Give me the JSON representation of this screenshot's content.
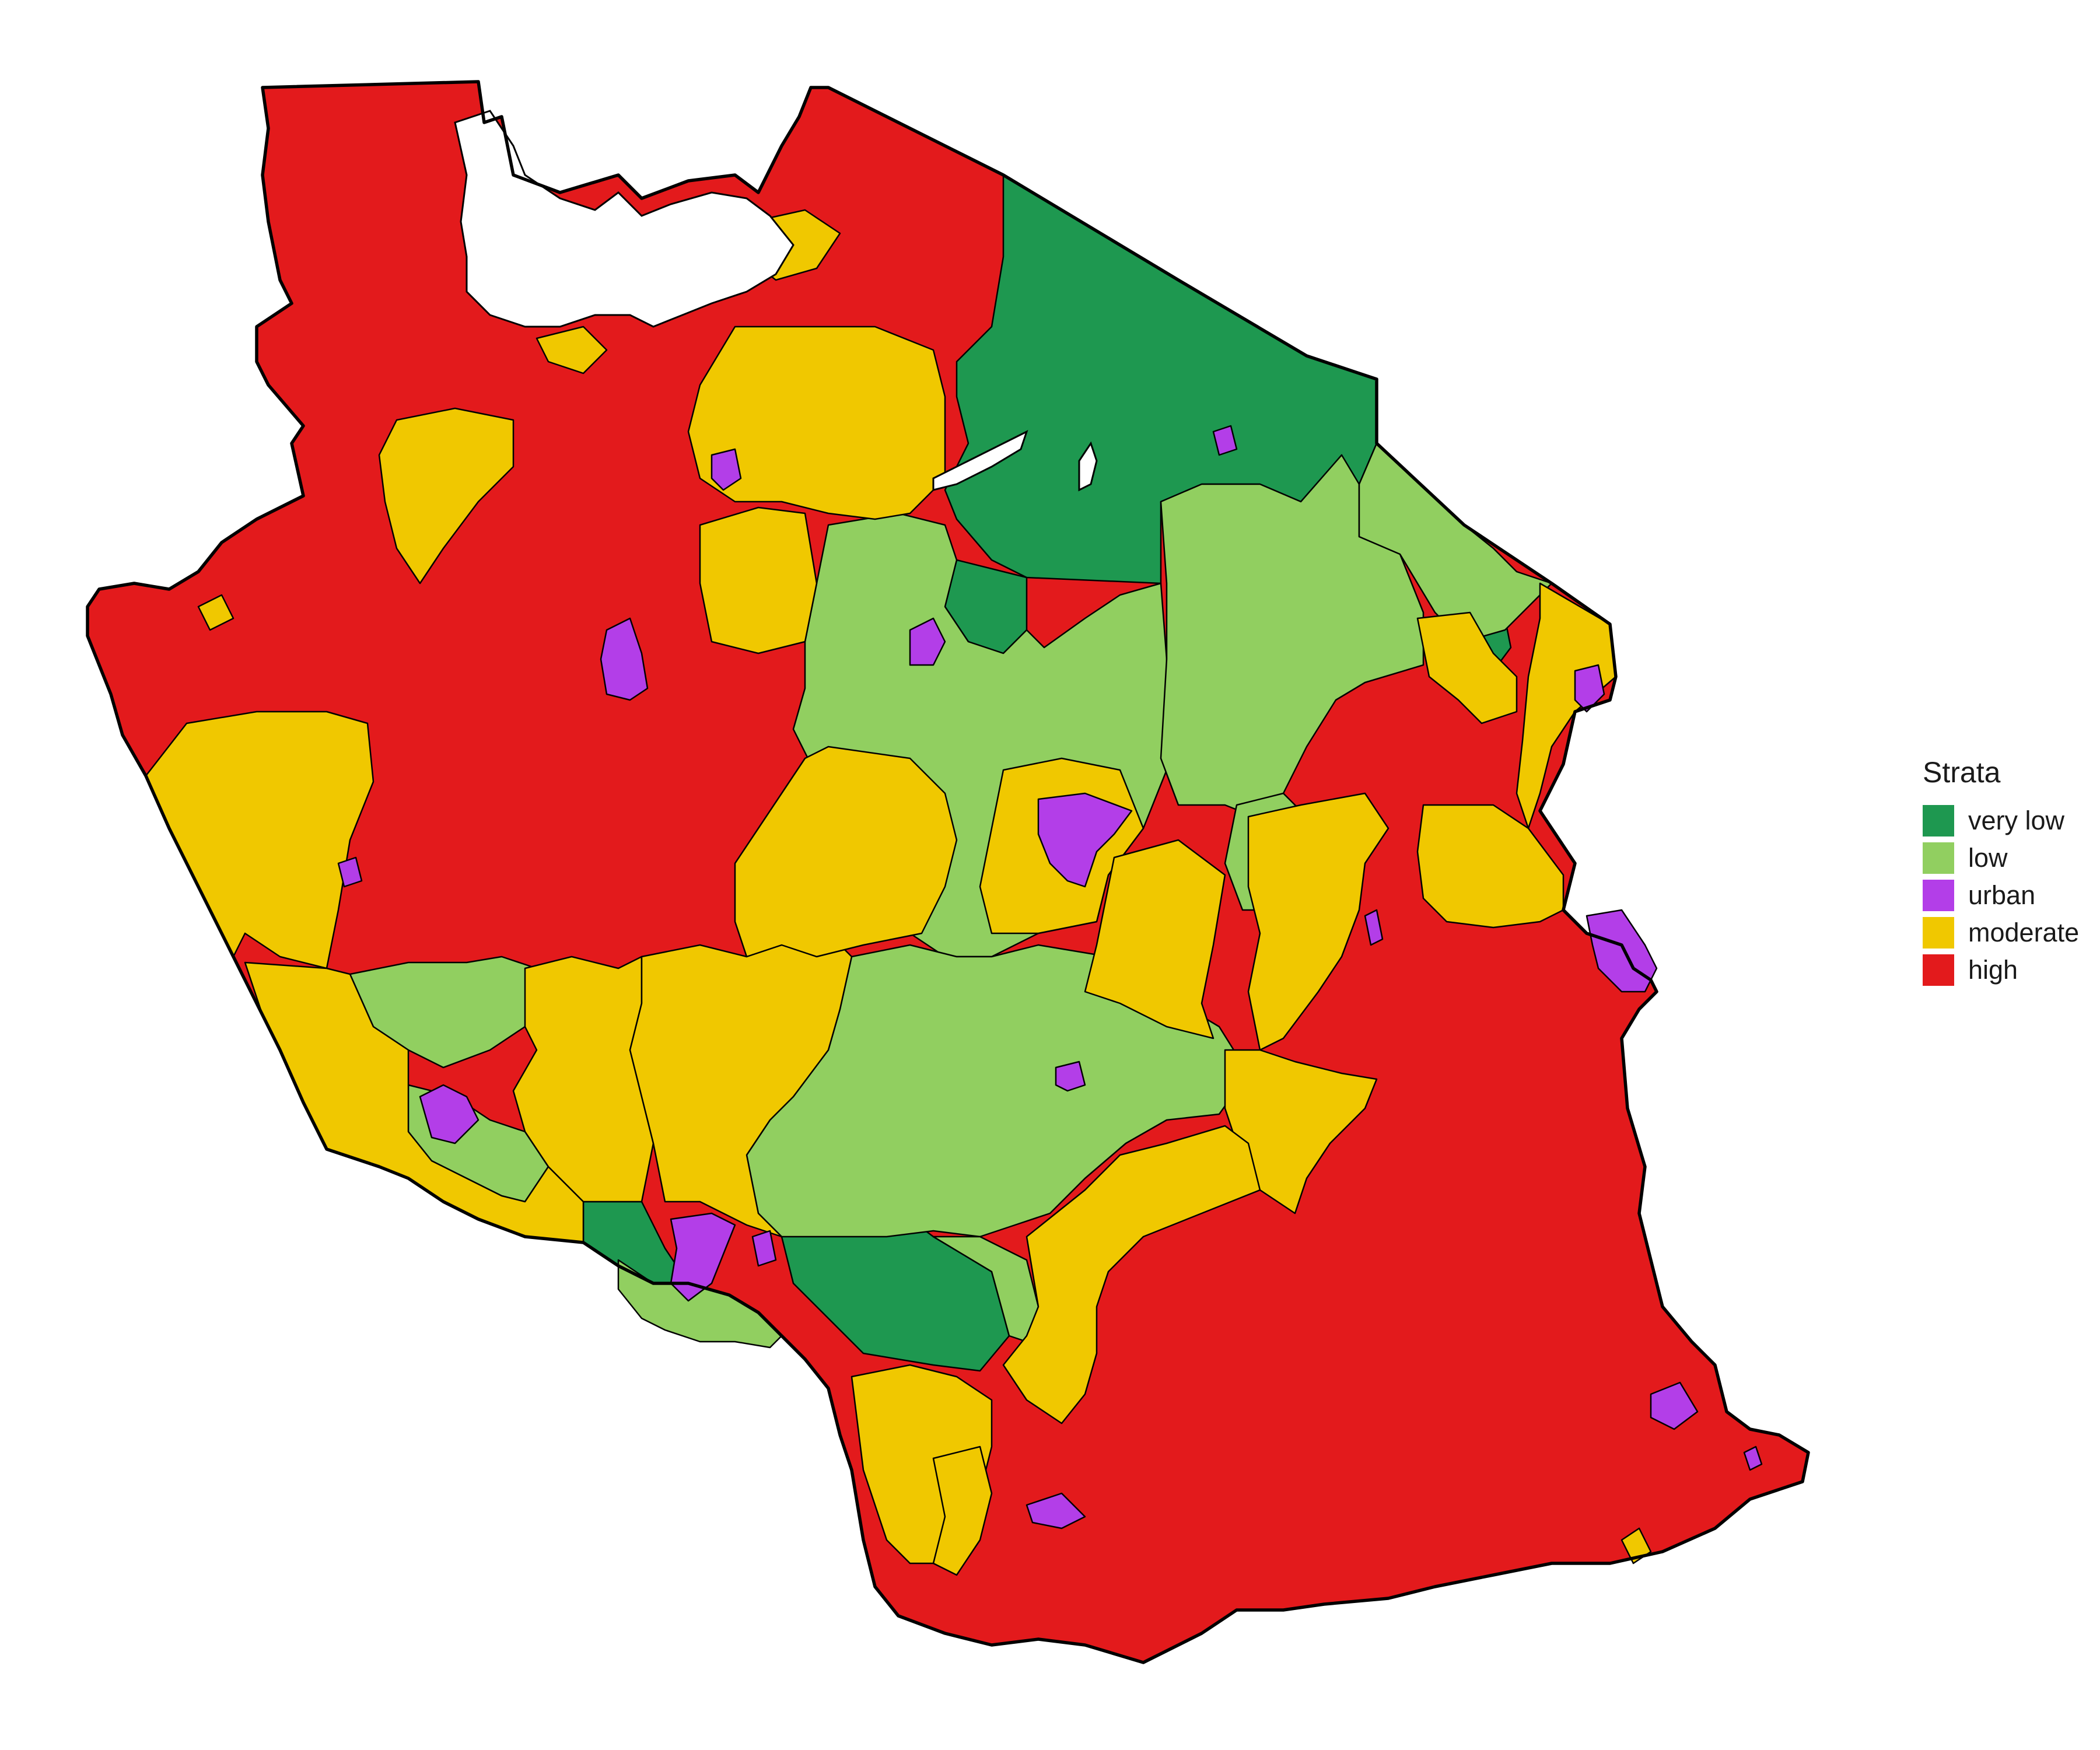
{
  "map": {
    "legend": {
      "title": "Strata",
      "items": [
        {
          "key": "very_low",
          "label": "very low",
          "color": "#1e9850"
        },
        {
          "key": "low",
          "label": "low",
          "color": "#91cf60"
        },
        {
          "key": "urban",
          "label": "urban",
          "color": "#b33ee8"
        },
        {
          "key": "moderate",
          "label": "moderate",
          "color": "#f0c800"
        },
        {
          "key": "high",
          "label": "high",
          "color": "#e31a1c"
        }
      ]
    }
  }
}
